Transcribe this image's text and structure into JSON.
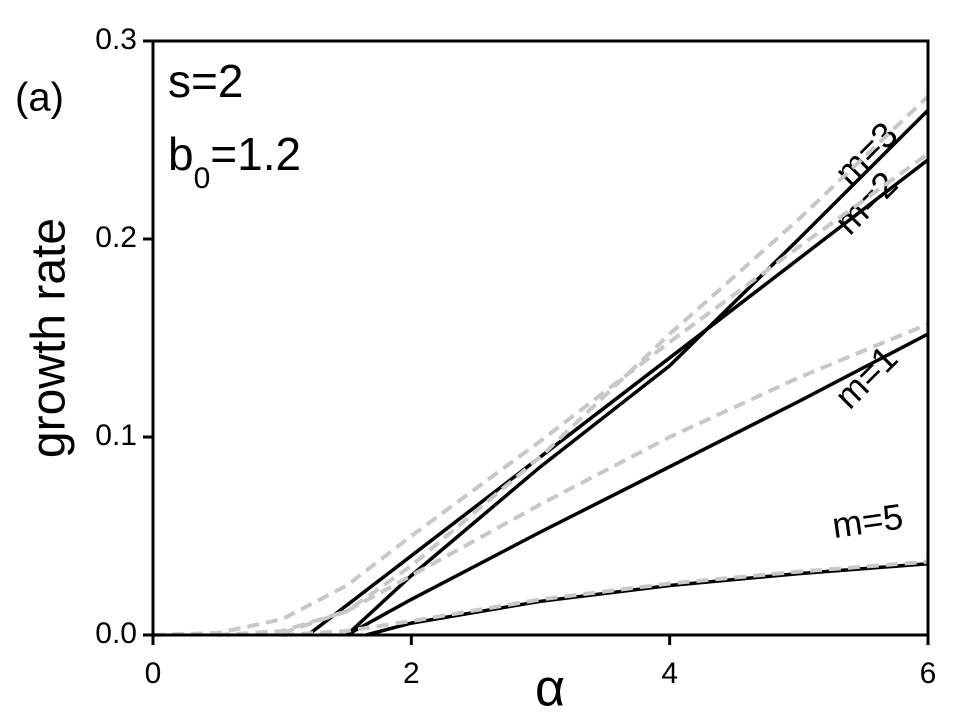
{
  "chart_data": {
    "type": "line",
    "xlabel": "α",
    "ylabel": "growth rate",
    "annotations": [
      "(a)",
      "s=2"
    ],
    "parameter": {
      "symbol": "b",
      "subscript": "0",
      "value": "=1.2"
    },
    "xlim": [
      0,
      6
    ],
    "xticks": [
      0,
      2,
      4,
      6
    ],
    "ylim": [
      0,
      0.3
    ],
    "yticks": [
      {
        "value": 0,
        "label": "0.0"
      },
      0.1,
      0.2,
      0.3
    ],
    "series": [
      {
        "name": "m=3",
        "color": "#000000",
        "dashed": false,
        "x": [
          1.5,
          2,
          3,
          4,
          5,
          6
        ],
        "values": [
          0,
          0.03,
          0.085,
          0.136,
          0.2,
          0.265
        ]
      },
      {
        "name": "m=2",
        "color": "#000000",
        "dashed": false,
        "x": [
          1.2,
          2,
          3,
          4,
          5,
          6
        ],
        "values": [
          0,
          0.04,
          0.09,
          0.14,
          0.19,
          0.24
        ]
      },
      {
        "name": "m=1",
        "color": "#000000",
        "dashed": false,
        "x": [
          1.5,
          2,
          3,
          4,
          5,
          6
        ],
        "values": [
          0,
          0.018,
          0.052,
          0.085,
          0.118,
          0.152
        ]
      },
      {
        "name": "m=5",
        "color": "#000000",
        "dashed": false,
        "x": [
          1.65,
          2,
          3,
          4,
          5,
          6
        ],
        "values": [
          0,
          0.006,
          0.017,
          0.025,
          0.031,
          0.036
        ]
      },
      {
        "color": "#c8c8c8",
        "dashed": true,
        "x": [
          1,
          1.5,
          2,
          3,
          4,
          5,
          6
        ],
        "values": [
          0.001,
          0.012,
          0.035,
          0.09,
          0.152,
          0.21,
          0.272
        ]
      },
      {
        "color": "#c8c8c8",
        "dashed": true,
        "x": [
          0,
          0.5,
          1,
          1.5,
          2,
          3,
          4,
          5,
          6
        ],
        "values": [
          0,
          0.001,
          0.008,
          0.025,
          0.05,
          0.098,
          0.148,
          0.196,
          0.243
        ]
      },
      {
        "color": "#c8c8c8",
        "dashed": true,
        "x": [
          0.5,
          1,
          1.5,
          2,
          3,
          4,
          5,
          6
        ],
        "values": [
          0,
          0.002,
          0.012,
          0.03,
          0.066,
          0.1,
          0.13,
          0.157
        ]
      },
      {
        "color": "#c8c8c8",
        "dashed": true,
        "x": [
          1,
          1.5,
          2,
          3,
          4,
          5,
          6
        ],
        "values": [
          0,
          0.002,
          0.007,
          0.018,
          0.026,
          0.032,
          0.037
        ]
      }
    ]
  }
}
